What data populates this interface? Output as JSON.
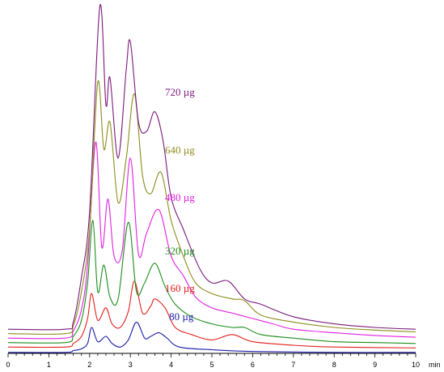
{
  "chart_data": {
    "type": "line",
    "title": "",
    "xlabel": "min",
    "ylabel": "",
    "xlim": [
      0,
      10
    ],
    "x_ticks": [
      0,
      1,
      2,
      3,
      4,
      5,
      6,
      7,
      8,
      9,
      10
    ],
    "x_unit_label": "min",
    "grid": false,
    "legend": "inline labels at right of peaks",
    "series": [
      {
        "name": "80 µg",
        "color": "#1a1aa6",
        "x": [
          0,
          1.4,
          1.6,
          1.8,
          1.95,
          2.05,
          2.2,
          2.4,
          2.55,
          2.75,
          2.95,
          3.15,
          3.35,
          3.5,
          3.7,
          3.9,
          4.2,
          5.0,
          6.0,
          8.0,
          10.0
        ],
        "y": [
          0.02,
          0.02,
          0.04,
          0.06,
          0.12,
          0.3,
          0.14,
          0.2,
          0.12,
          0.08,
          0.16,
          0.36,
          0.18,
          0.2,
          0.24,
          0.18,
          0.08,
          0.05,
          0.03,
          0.02,
          0.02
        ]
      },
      {
        "name": "160 µg",
        "color": "#e0201a",
        "x": [
          0,
          1.4,
          1.6,
          1.8,
          1.95,
          2.05,
          2.2,
          2.4,
          2.55,
          2.75,
          2.95,
          3.1,
          3.3,
          3.5,
          3.6,
          3.85,
          4.1,
          4.5,
          5.0,
          5.5,
          6.0,
          7.0,
          8.0,
          10.0
        ],
        "y": [
          0.08,
          0.08,
          0.12,
          0.2,
          0.4,
          0.68,
          0.38,
          0.52,
          0.34,
          0.3,
          0.48,
          0.82,
          0.46,
          0.54,
          0.62,
          0.52,
          0.3,
          0.22,
          0.16,
          0.22,
          0.14,
          0.1,
          0.08,
          0.07
        ]
      },
      {
        "name": "320 µg",
        "color": "#1c8c1c",
        "x": [
          0,
          1.4,
          1.6,
          1.8,
          1.95,
          2.08,
          2.2,
          2.35,
          2.5,
          2.7,
          2.95,
          3.15,
          3.35,
          3.6,
          3.85,
          4.1,
          4.5,
          5.0,
          5.5,
          5.8,
          6.2,
          7.0,
          8.0,
          9.0,
          10.0
        ],
        "y": [
          0.13,
          0.13,
          0.2,
          0.38,
          0.8,
          1.5,
          0.7,
          1.0,
          0.64,
          0.62,
          1.48,
          0.7,
          0.8,
          1.02,
          0.76,
          0.56,
          0.42,
          0.34,
          0.3,
          0.3,
          0.22,
          0.18,
          0.14,
          0.13,
          0.12
        ]
      },
      {
        "name": "480 µg",
        "color": "#e020e0",
        "x": [
          0,
          1.4,
          1.6,
          1.8,
          1.95,
          2.15,
          2.3,
          2.45,
          2.6,
          2.8,
          3.0,
          3.2,
          3.4,
          3.7,
          4.0,
          4.3,
          4.6,
          5.0,
          5.5,
          6.0,
          6.5,
          7.0,
          8.0,
          9.0,
          10.0
        ],
        "y": [
          0.18,
          0.18,
          0.26,
          0.5,
          1.0,
          2.38,
          1.2,
          1.74,
          1.1,
          1.16,
          2.2,
          1.12,
          1.36,
          1.62,
          1.1,
          0.88,
          0.64,
          0.52,
          0.46,
          0.4,
          0.34,
          0.28,
          0.24,
          0.21,
          0.19
        ]
      },
      {
        "name": "640 µg",
        "color": "#8c8c1c",
        "x": [
          0,
          1.4,
          1.6,
          1.8,
          2.0,
          2.2,
          2.35,
          2.5,
          2.7,
          2.9,
          3.1,
          3.3,
          3.5,
          3.75,
          4.0,
          4.3,
          4.6,
          5.0,
          5.5,
          5.8,
          6.2,
          7.0,
          8.0,
          9.0,
          10.0
        ],
        "y": [
          0.23,
          0.23,
          0.32,
          0.7,
          1.4,
          3.05,
          2.3,
          2.6,
          1.7,
          2.2,
          2.92,
          2.0,
          1.8,
          2.04,
          1.5,
          1.1,
          0.8,
          0.68,
          0.62,
          0.6,
          0.44,
          0.36,
          0.3,
          0.27,
          0.25
        ]
      },
      {
        "name": "720 µg",
        "color": "#7a1a7a",
        "x": [
          0,
          1.4,
          1.6,
          1.8,
          2.0,
          2.25,
          2.4,
          2.5,
          2.7,
          2.9,
          3.0,
          3.2,
          3.4,
          3.6,
          3.8,
          4.0,
          4.3,
          4.7,
          5.0,
          5.4,
          5.8,
          6.2,
          7.0,
          8.0,
          9.0,
          10.0
        ],
        "y": [
          0.28,
          0.28,
          0.36,
          0.86,
          1.6,
          3.9,
          2.8,
          3.1,
          2.2,
          3.2,
          3.5,
          2.6,
          2.5,
          2.72,
          2.4,
          1.76,
          1.4,
          0.96,
          0.8,
          0.82,
          0.62,
          0.56,
          0.42,
          0.34,
          0.3,
          0.28
        ]
      }
    ],
    "labels": [
      {
        "text": "720 µg",
        "x": 3.85,
        "y": 2.9,
        "color": "#7a1a7a"
      },
      {
        "text": "640 µg",
        "x": 3.85,
        "y": 2.25,
        "color": "#8c8c1c"
      },
      {
        "text": "480 µg",
        "x": 3.85,
        "y": 1.72,
        "color": "#e020e0"
      },
      {
        "text": "320 µg",
        "x": 3.85,
        "y": 1.12,
        "color": "#1c8c1c"
      },
      {
        "text": "160 µg",
        "x": 3.85,
        "y": 0.7,
        "color": "#e0201a"
      },
      {
        "text": "80 µg",
        "x": 3.95,
        "y": 0.38,
        "color": "#1a1aa6"
      }
    ]
  }
}
